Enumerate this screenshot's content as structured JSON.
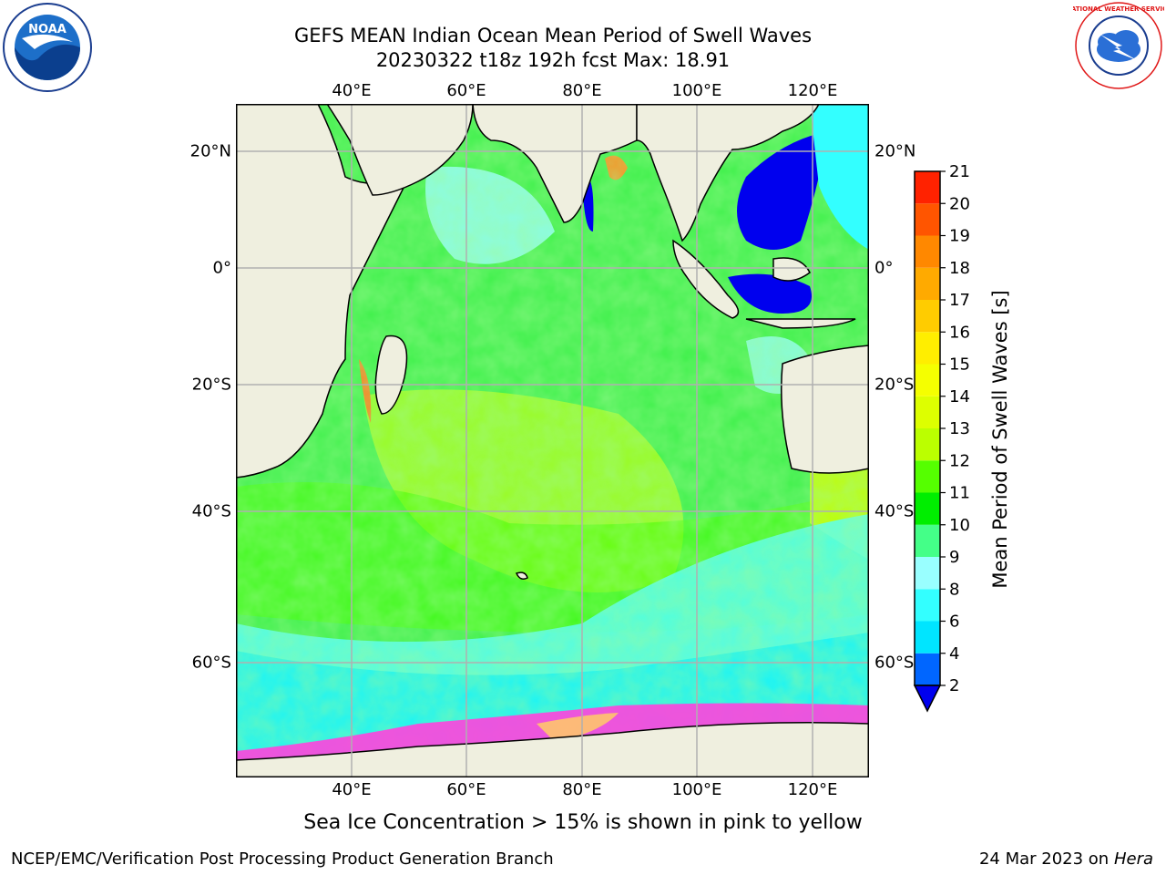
{
  "title_line1": "GEFS MEAN Indian Ocean Mean Period of Swell Waves",
  "title_line2": "20230322 t18z 192h fcst   Max: 18.91",
  "logos": {
    "left": {
      "text": "NOAA",
      "icon": "noaa-logo-icon"
    },
    "right": {
      "text": "NATIONAL WEATHER SERVICE",
      "icon": "nws-logo-icon"
    }
  },
  "map": {
    "region": "Indian Ocean",
    "lon_range": [
      20,
      130
    ],
    "lat_range": [
      -73,
      27
    ],
    "lon_ticks": [
      {
        "value": 40,
        "label": "40°E"
      },
      {
        "value": 60,
        "label": "60°E"
      },
      {
        "value": 80,
        "label": "80°E"
      },
      {
        "value": 100,
        "label": "100°E"
      },
      {
        "value": 120,
        "label": "120°E"
      }
    ],
    "lat_ticks": [
      {
        "value": 20,
        "label": "20°N"
      },
      {
        "value": 0,
        "label": "0°"
      },
      {
        "value": -20,
        "label": "20°S"
      },
      {
        "value": -40,
        "label": "40°S"
      },
      {
        "value": -60,
        "label": "60°S"
      }
    ],
    "grid": true,
    "colors": {
      "land": "#efefdf",
      "ice_mask": "#ffffff",
      "grid": "#b0b0b0"
    }
  },
  "colorbar": {
    "label": "Mean Period of Swell Waves [s]",
    "ticks": [
      "2",
      "4",
      "6",
      "8",
      "9",
      "10",
      "11",
      "12",
      "13",
      "14",
      "15",
      "16",
      "17",
      "18",
      "19",
      "20",
      "21"
    ],
    "colors": [
      "#0066ff",
      "#00e5ff",
      "#33ffff",
      "#99ffff",
      "#44ff88",
      "#00ee00",
      "#55ff00",
      "#bbff00",
      "#ddff00",
      "#f5ff00",
      "#ffee00",
      "#ffcc00",
      "#ffaa00",
      "#ff8800",
      "#ff5500",
      "#ff2200"
    ],
    "under_color": "#0000ee"
  },
  "note": "Sea Ice Concentration > 15% is shown in pink to yellow",
  "footer": {
    "left": "NCEP/EMC/Verification Post Processing Product Generation Branch",
    "date": "24 Mar 2023 on",
    "machine": "Hera"
  }
}
